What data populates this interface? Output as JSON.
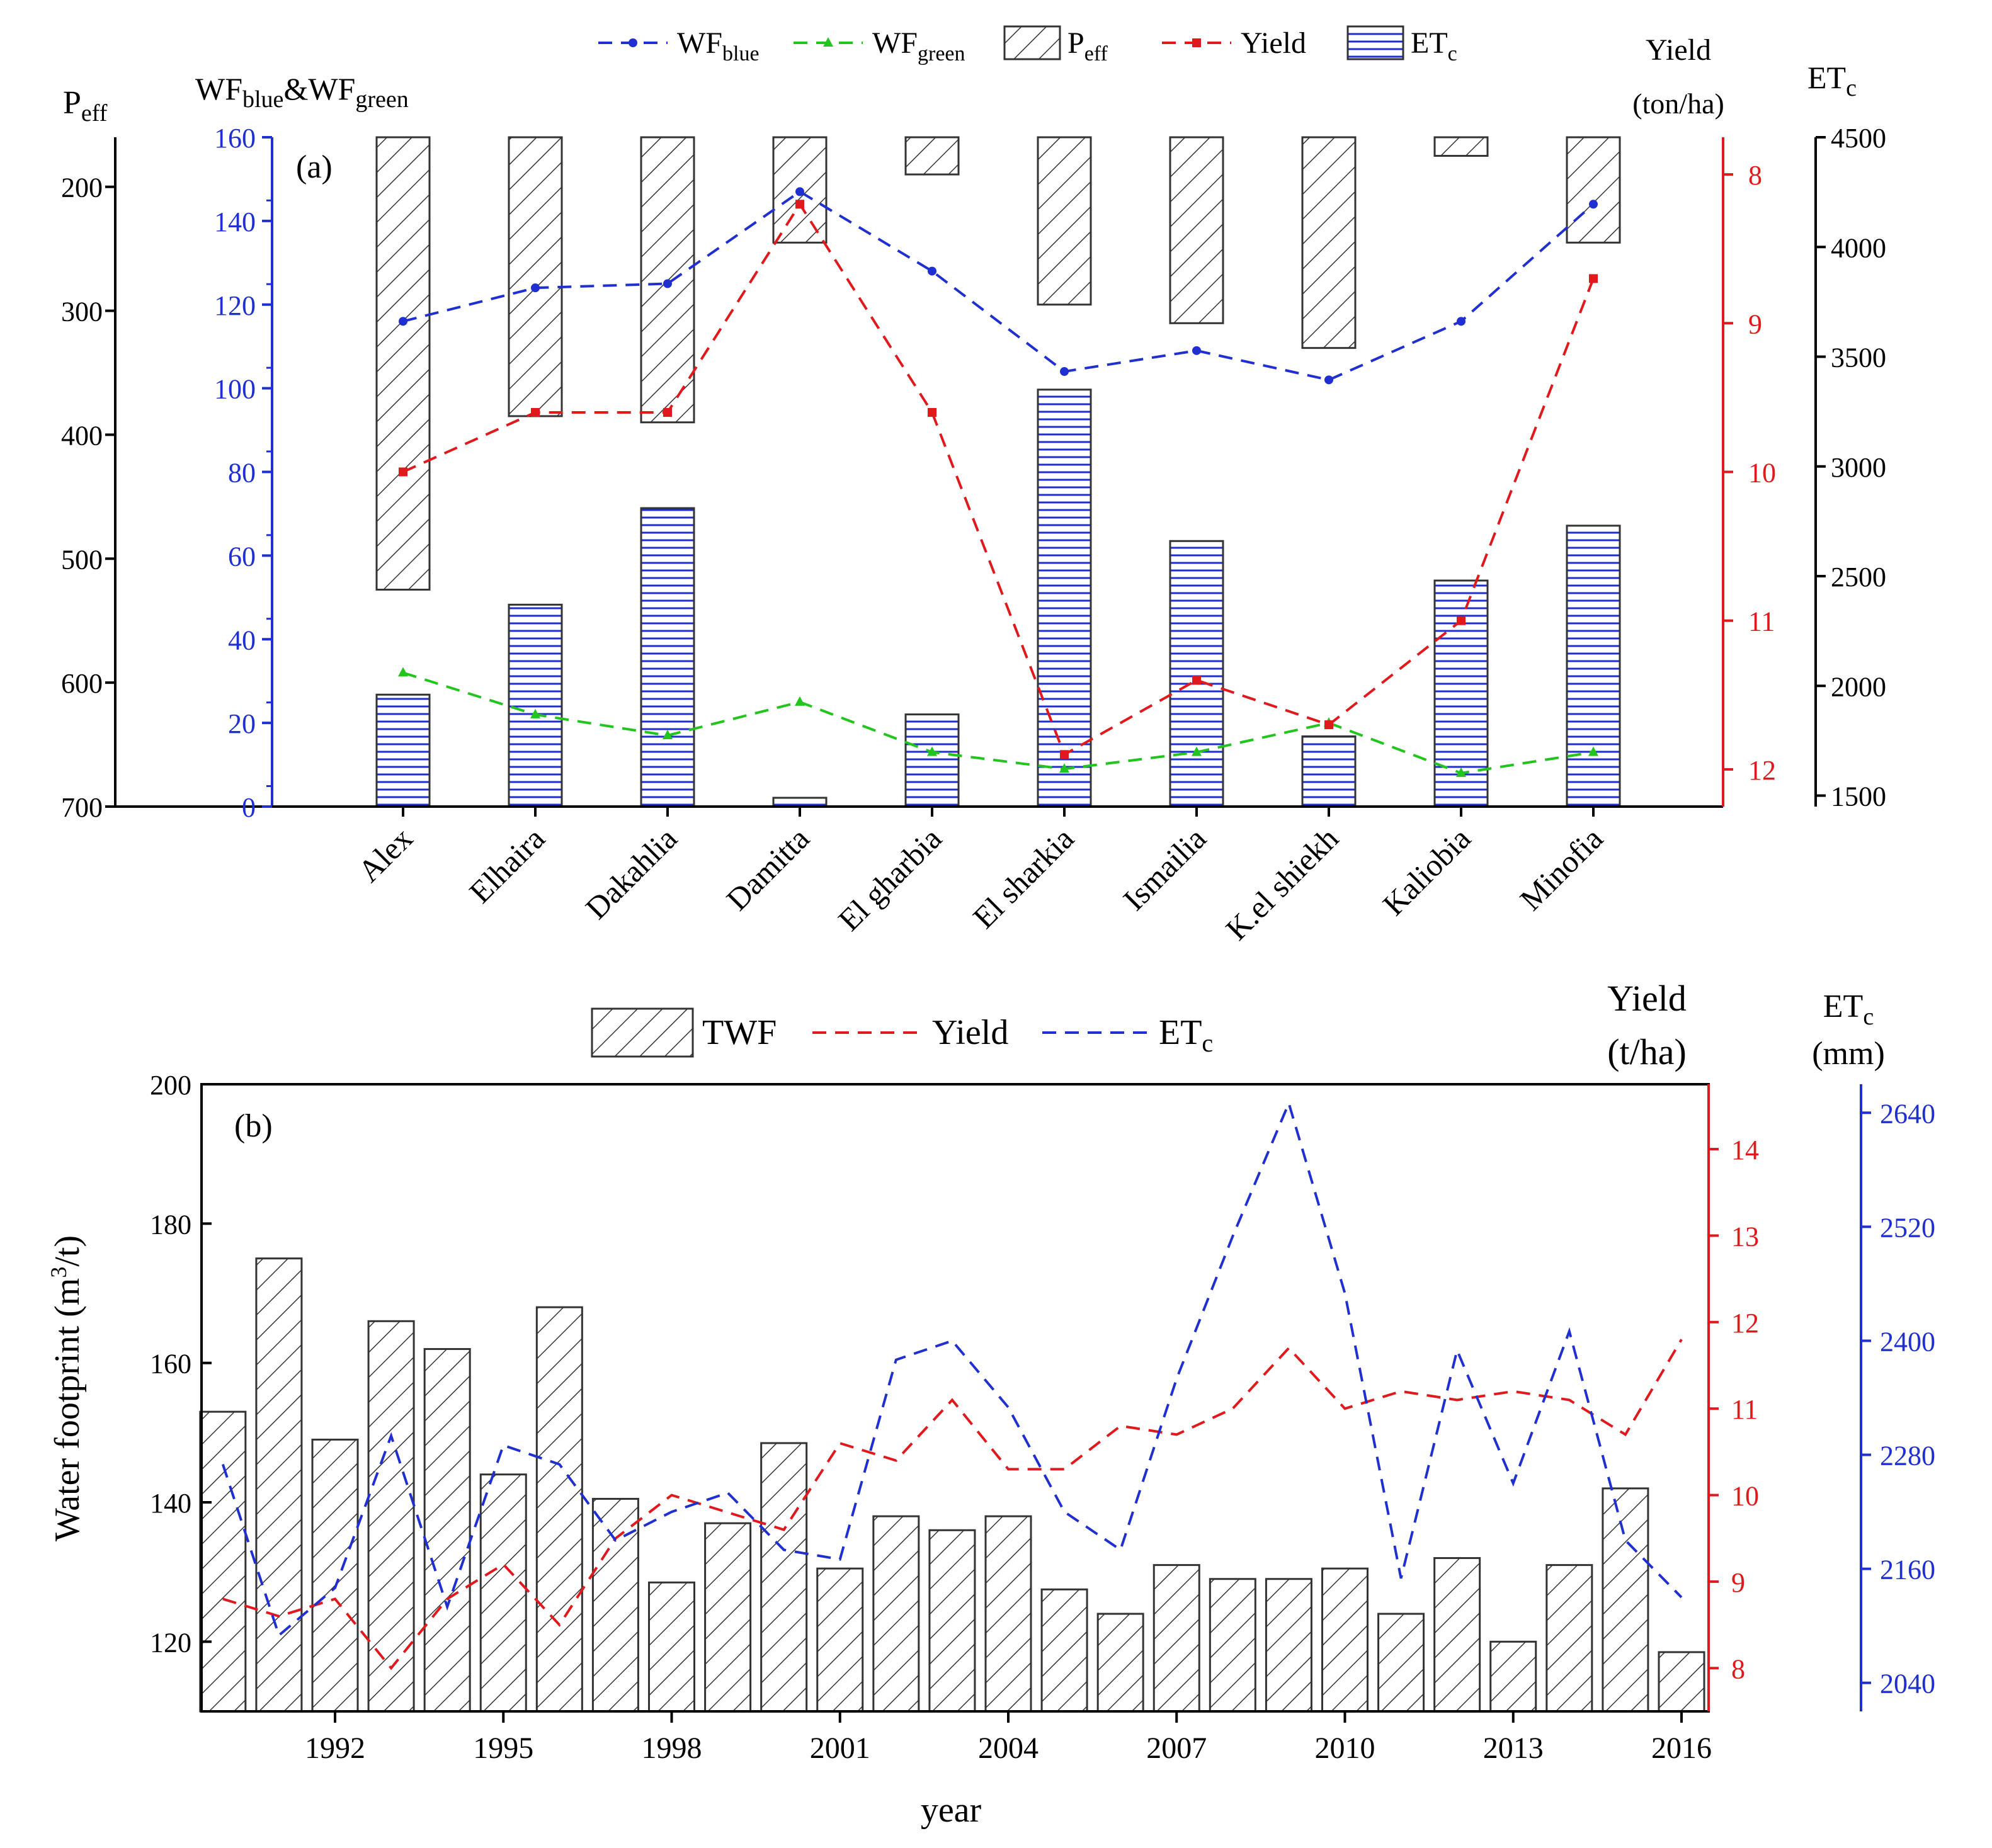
{
  "chart_data": [
    {
      "panel": "(a)",
      "type": "bar",
      "categories": [
        "Alex",
        "Elhaira",
        "Dakahlia",
        "Damitta",
        "El gharbia",
        "El sharkia",
        "Ismailia",
        "K.el shiekh",
        "Kaliobia",
        "Minofia"
      ],
      "legend": [
        "WF",
        "WF",
        "P",
        "Yield",
        "ET"
      ],
      "legend_subscripts": [
        "blue",
        "green",
        "eff",
        "",
        "c"
      ],
      "axes": {
        "peff": {
          "label": "P",
          "label_sub": "eff",
          "range": [
            160,
            700
          ],
          "inverted": true,
          "ticks": [
            "200",
            "300",
            "400",
            "500",
            "600",
            "700"
          ]
        },
        "wf": {
          "label": "WF",
          "label_sub": "blue",
          "label_mid": "&WF",
          "label_sub2": "green",
          "range": [
            0,
            160
          ],
          "ticks": [
            "0",
            "20",
            "40",
            "60",
            "80",
            "100",
            "120",
            "140",
            "160"
          ],
          "color": "#1f2fd0"
        },
        "yield": {
          "label": "Yield",
          "unit": "(ton/ha)",
          "range": [
            7.75,
            12.25
          ],
          "inverted": true,
          "ticks": [
            "8",
            "9",
            "10",
            "11",
            "12"
          ],
          "color": "#e0191c"
        },
        "etc": {
          "label": "ET",
          "label_sub": "c",
          "range": [
            1450,
            4500
          ],
          "ticks": [
            "1500",
            "2000",
            "2500",
            "3000",
            "3500",
            "4000",
            "4500"
          ]
        }
      },
      "series": [
        {
          "name": "Peff",
          "type": "bar",
          "axis": "peff",
          "values": [
            525,
            385,
            390,
            245,
            190,
            295,
            310,
            330,
            175,
            245
          ]
        },
        {
          "name": "ETc",
          "type": "bar",
          "axis": "etc",
          "values": [
            1960,
            2370,
            2810,
            1490,
            1870,
            3350,
            2660,
            1770,
            2480,
            2730
          ]
        },
        {
          "name": "WFblue",
          "type": "line",
          "axis": "wf",
          "color": "#1f2fd0",
          "values": [
            116,
            124,
            125,
            147,
            128,
            104,
            109,
            102,
            116,
            144
          ]
        },
        {
          "name": "WFgreen",
          "type": "line",
          "axis": "wf",
          "color": "#22c41e",
          "values": [
            32,
            22,
            17,
            25,
            13,
            9,
            13,
            20,
            8,
            13
          ]
        },
        {
          "name": "Yield",
          "type": "line",
          "axis": "yield",
          "color": "#e0191c",
          "values": [
            10.0,
            9.6,
            9.6,
            8.2,
            9.6,
            11.9,
            11.4,
            11.7,
            11.0,
            8.7
          ]
        }
      ]
    },
    {
      "panel": "(b)",
      "type": "bar",
      "xlabel": "year",
      "x": [
        1990,
        1991,
        1992,
        1993,
        1994,
        1995,
        1996,
        1997,
        1998,
        1999,
        2000,
        2001,
        2002,
        2003,
        2004,
        2005,
        2006,
        2007,
        2008,
        2009,
        2010,
        2011,
        2012,
        2013,
        2014,
        2015,
        2016
      ],
      "xticks": [
        "1992",
        "1995",
        "1998",
        "2001",
        "2004",
        "2007",
        "2010",
        "2013",
        "2016"
      ],
      "legend": [
        "TWF",
        "Yield",
        "ET"
      ],
      "legend_subscripts": [
        "",
        "",
        "c"
      ],
      "axes": {
        "twf": {
          "label": "Water footprint (m",
          "label_sup": "3",
          "label_end": "/t)",
          "range": [
            110,
            200
          ],
          "ticks": [
            "120",
            "140",
            "160",
            "180",
            "200"
          ]
        },
        "yield": {
          "label": "Yield",
          "unit": "(t/ha)",
          "range": [
            7.5,
            14.75
          ],
          "ticks": [
            "8",
            "9",
            "10",
            "11",
            "12",
            "13",
            "14"
          ],
          "color": "#e0191c"
        },
        "etc": {
          "label": "ET",
          "label_sub": "c",
          "unit": "(mm)",
          "range": [
            2010,
            2670
          ],
          "ticks": [
            "2040",
            "2160",
            "2280",
            "2400",
            "2520",
            "2640"
          ],
          "color": "#1f2fd0"
        }
      },
      "series": [
        {
          "name": "TWF",
          "type": "bar",
          "axis": "twf",
          "values": [
            153,
            175,
            149,
            166,
            162,
            144,
            168,
            140.5,
            128.5,
            137,
            148.5,
            130.5,
            138,
            136,
            138,
            127.5,
            124,
            131,
            129,
            129,
            130.5,
            124,
            132,
            120,
            131,
            142,
            118.5
          ]
        },
        {
          "name": "Yield",
          "type": "line",
          "axis": "yield",
          "color": "#e0191c",
          "values": [
            8.8,
            8.6,
            8.8,
            8.0,
            8.8,
            9.2,
            8.5,
            9.5,
            10.0,
            9.8,
            9.6,
            10.6,
            10.4,
            11.1,
            10.3,
            10.3,
            10.8,
            10.7,
            11.0,
            11.7,
            11.0,
            11.2,
            11.1,
            11.2,
            11.1,
            10.7,
            11.8
          ]
        },
        {
          "name": "ETc",
          "type": "line",
          "axis": "etc",
          "color": "#1f2fd0",
          "values": [
            2270,
            2090,
            2140,
            2300,
            2120,
            2290,
            2270,
            2190,
            2220,
            2240,
            2180,
            2170,
            2380,
            2400,
            2330,
            2220,
            2180,
            2360,
            2510,
            2650,
            2450,
            2150,
            2390,
            2250,
            2410,
            2190,
            2130
          ]
        }
      ]
    }
  ]
}
